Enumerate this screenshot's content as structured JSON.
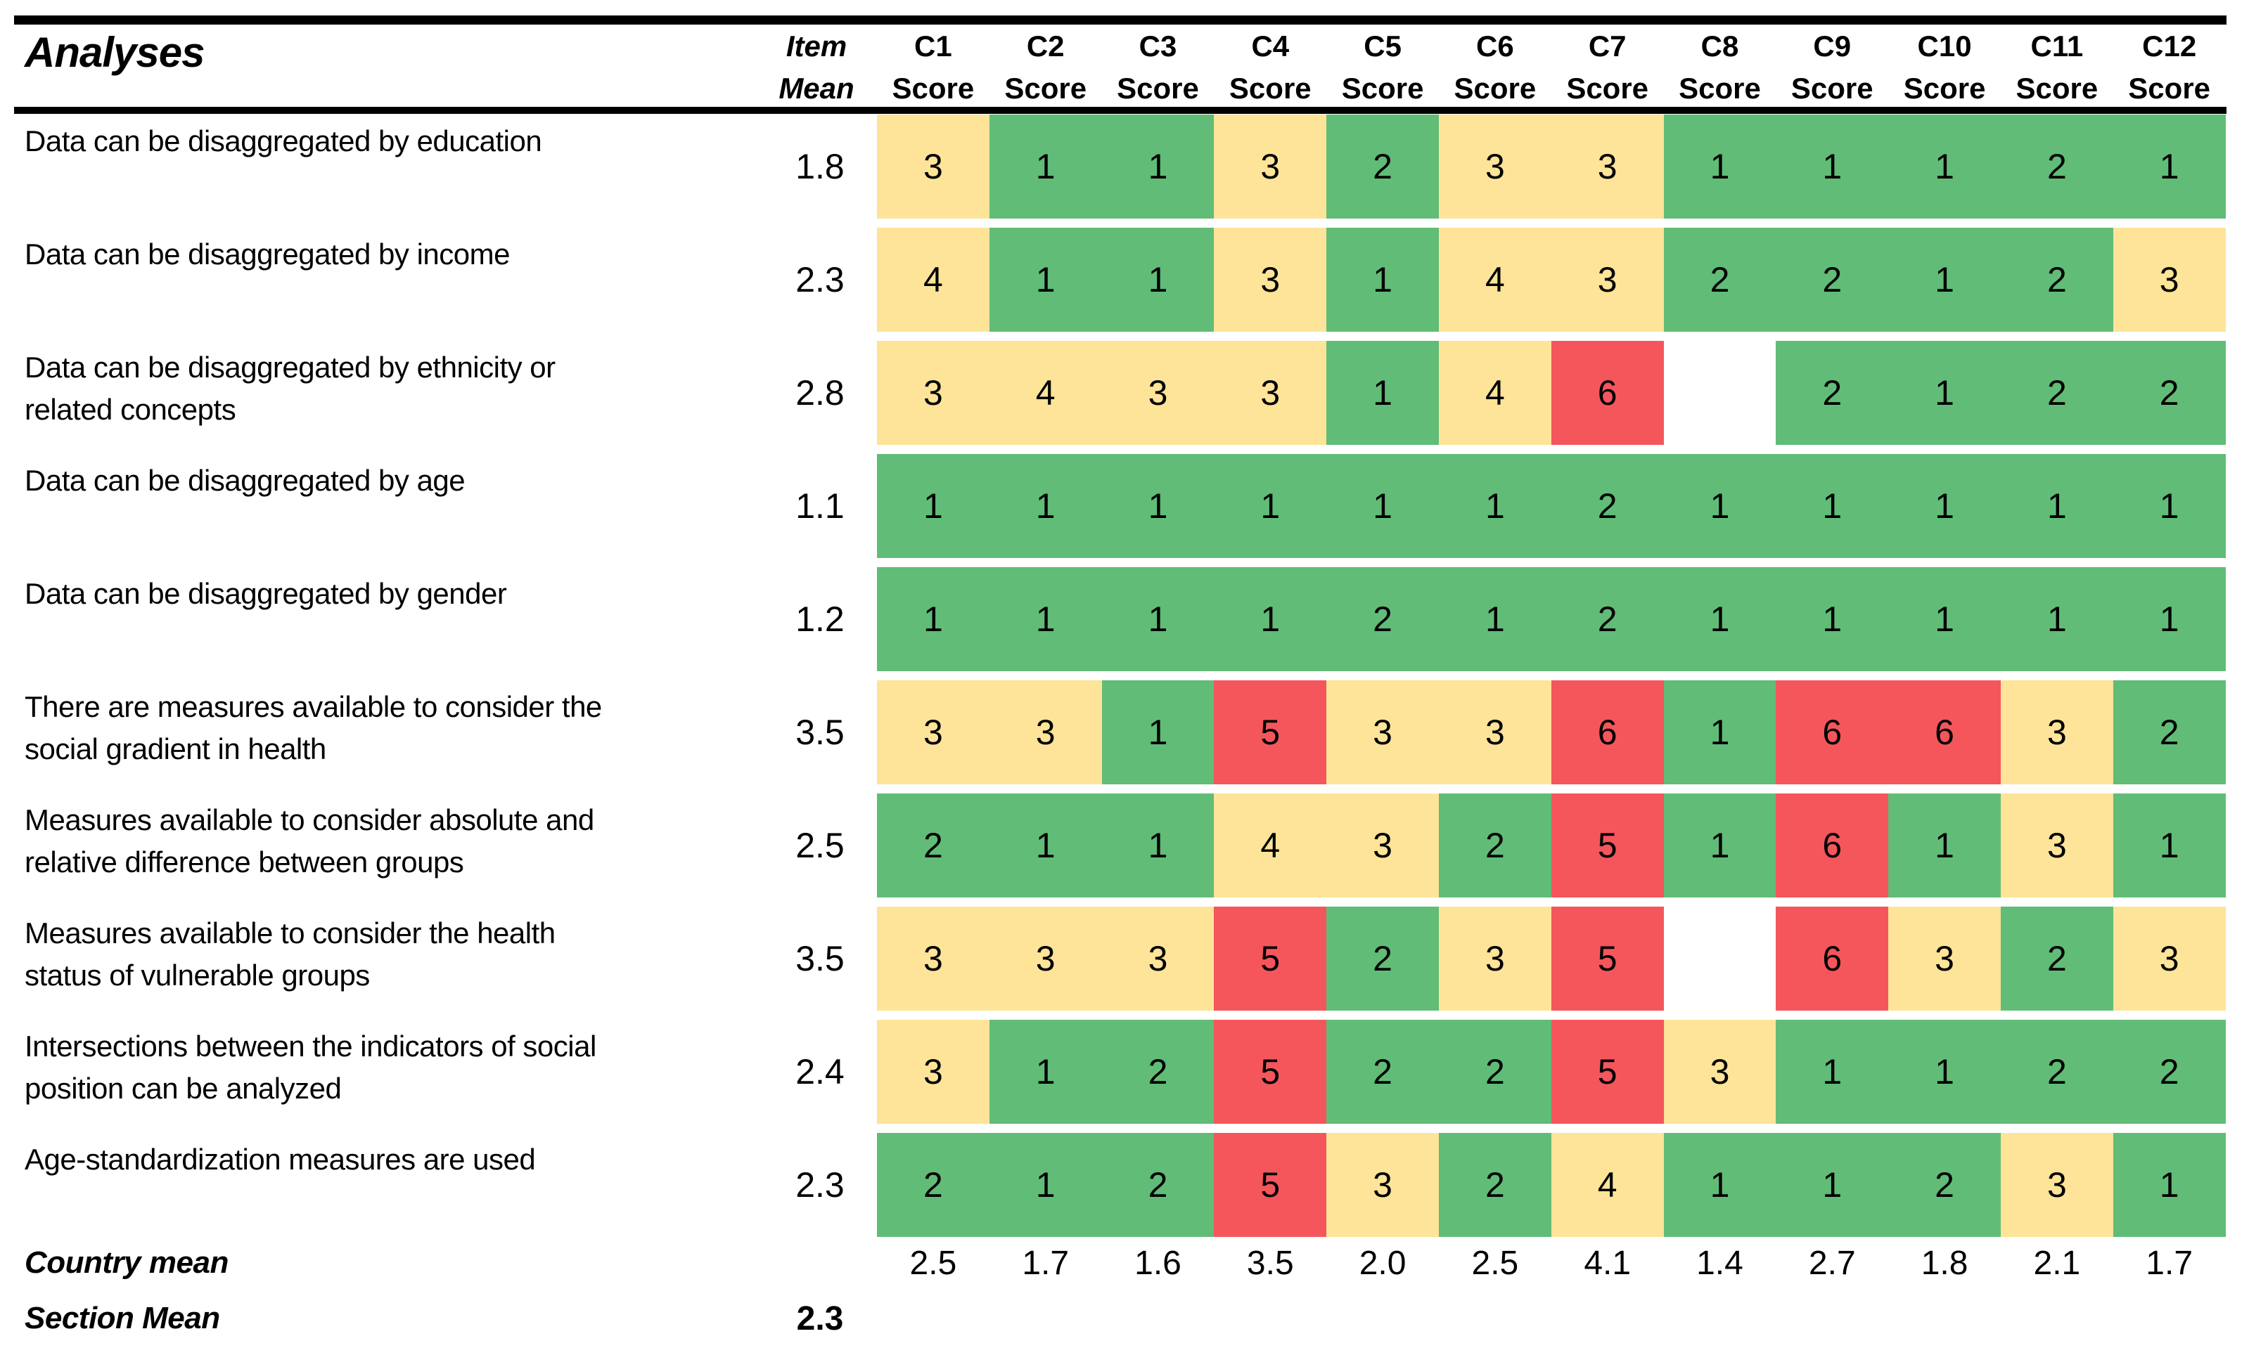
{
  "chart_data": {
    "type": "heatmap",
    "title": "Analyses",
    "item_mean_header": [
      "Item",
      "Mean"
    ],
    "column_header_sub": "Score",
    "columns": [
      "C1",
      "C2",
      "C3",
      "C4",
      "C5",
      "C6",
      "C7",
      "C8",
      "C9",
      "C10",
      "C11",
      "C12"
    ],
    "rows": [
      {
        "label": "Data can be disaggregated by education",
        "item_mean": "1.8",
        "scores": [
          3,
          1,
          1,
          3,
          2,
          3,
          3,
          1,
          1,
          1,
          2,
          1
        ]
      },
      {
        "label": "Data can be disaggregated by income",
        "item_mean": "2.3",
        "scores": [
          4,
          1,
          1,
          3,
          1,
          4,
          3,
          2,
          2,
          1,
          2,
          3
        ]
      },
      {
        "label": "Data can be disaggregated by ethnicity or related concepts",
        "item_mean": "2.8",
        "scores": [
          3,
          4,
          3,
          3,
          1,
          4,
          6,
          null,
          2,
          1,
          2,
          2
        ]
      },
      {
        "label": "Data can be disaggregated by age",
        "item_mean": "1.1",
        "scores": [
          1,
          1,
          1,
          1,
          1,
          1,
          2,
          1,
          1,
          1,
          1,
          1
        ]
      },
      {
        "label": "Data can be disaggregated by gender",
        "item_mean": "1.2",
        "scores": [
          1,
          1,
          1,
          1,
          2,
          1,
          2,
          1,
          1,
          1,
          1,
          1
        ]
      },
      {
        "label": "There are measures available to consider the social gradient in health",
        "item_mean": "3.5",
        "scores": [
          3,
          3,
          1,
          5,
          3,
          3,
          6,
          1,
          6,
          6,
          3,
          2
        ]
      },
      {
        "label": "Measures available to consider absolute and relative difference between groups",
        "item_mean": "2.5",
        "scores": [
          2,
          1,
          1,
          4,
          3,
          2,
          5,
          1,
          6,
          1,
          3,
          1
        ]
      },
      {
        "label": "Measures available to consider the health status of vulnerable groups",
        "item_mean": "3.5",
        "scores": [
          3,
          3,
          3,
          5,
          2,
          3,
          5,
          null,
          6,
          3,
          2,
          3
        ]
      },
      {
        "label": "Intersections between the indicators of social position can be analyzed",
        "item_mean": "2.4",
        "scores": [
          3,
          1,
          2,
          5,
          2,
          2,
          5,
          3,
          1,
          1,
          2,
          2
        ]
      },
      {
        "label": "Age-standardization measures are used",
        "item_mean": "2.3",
        "scores": [
          2,
          1,
          2,
          5,
          3,
          2,
          4,
          1,
          1,
          2,
          3,
          1
        ]
      }
    ],
    "country_mean": {
      "label": "Country mean",
      "values": [
        "2.5",
        "1.7",
        "1.6",
        "3.5",
        "2.0",
        "2.5",
        "4.1",
        "1.4",
        "2.7",
        "1.8",
        "2.1",
        "1.7"
      ]
    },
    "section_mean": {
      "label": "Section Mean",
      "value": "2.3"
    },
    "legend_colors": {
      "score_1_2": "#61BC77",
      "score_3_4": "#FDE498",
      "score_5_6": "#F4565C",
      "missing": "#FFFFFF"
    },
    "layout": {
      "grid": "off",
      "legend": "none",
      "value_range": [
        1,
        6
      ]
    }
  }
}
